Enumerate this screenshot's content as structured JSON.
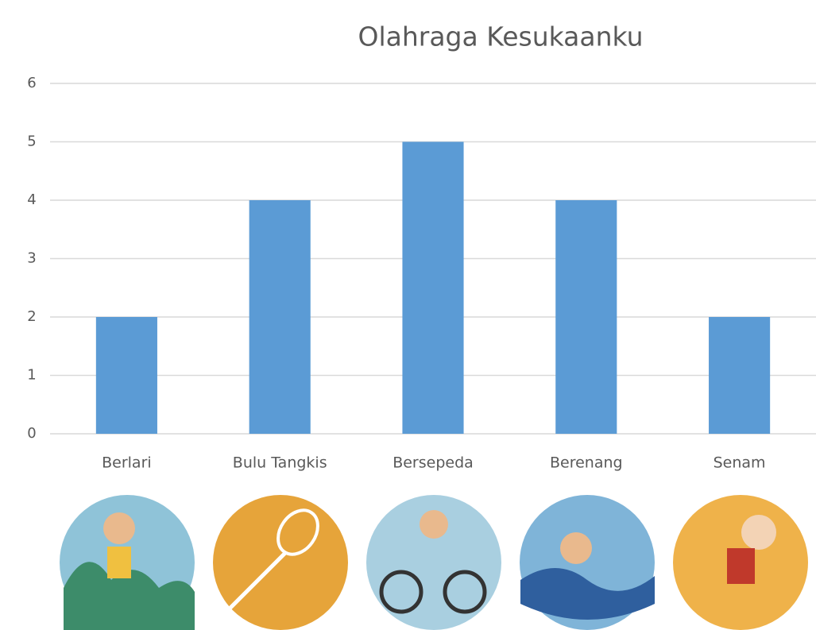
{
  "chart_data": {
    "type": "bar",
    "title": "Olahraga Kesukaanku",
    "categories": [
      "Berlari",
      "Bulu Tangkis",
      "Bersepeda",
      "Berenang",
      "Senam"
    ],
    "values": [
      2,
      4,
      5,
      4,
      2
    ],
    "color": "#5b9bd5",
    "ylim": [
      0,
      6
    ],
    "yticks": [
      0,
      1,
      2,
      3,
      4,
      5,
      6
    ],
    "grid": true
  }
}
